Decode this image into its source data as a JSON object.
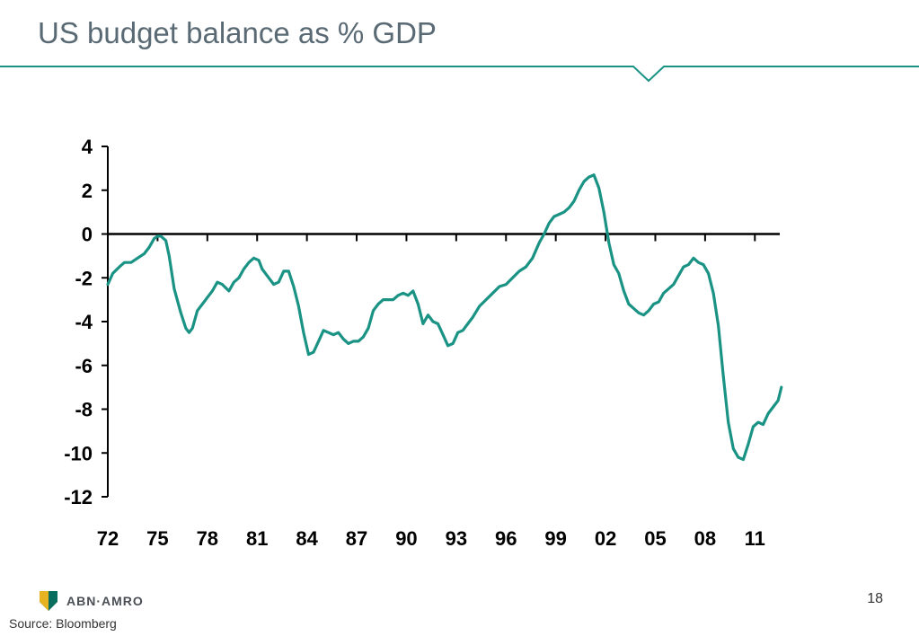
{
  "title": "US budget balance as % GDP",
  "source": "Source: Bloomberg",
  "page_number": "18",
  "logo_text": "ABN·AMRO",
  "colors": {
    "line": "#1a9385",
    "title": "#5a6a74",
    "rule": "#1a9385",
    "logo_dark": "#0a6e5f",
    "logo_yellow": "#e6b422"
  },
  "chart_data": {
    "type": "line",
    "x_tick_labels": [
      "72",
      "75",
      "78",
      "81",
      "84",
      "87",
      "90",
      "93",
      "96",
      "99",
      "02",
      "05",
      "08",
      "11"
    ],
    "x_tick_years": [
      1972,
      1975,
      1978,
      1981,
      1984,
      1987,
      1990,
      1993,
      1996,
      1999,
      2002,
      2005,
      2008,
      2011
    ],
    "xlim": [
      1972,
      2012.5
    ],
    "y_ticks": [
      4,
      2,
      0,
      -2,
      -4,
      -6,
      -8,
      -10,
      -12
    ],
    "ylim": [
      -12,
      4
    ],
    "grid": false,
    "series": [
      {
        "values": [
          [
            1972.0,
            -2.3
          ],
          [
            1972.3,
            -1.8
          ],
          [
            1972.7,
            -1.5
          ],
          [
            1973.0,
            -1.3
          ],
          [
            1973.4,
            -1.3
          ],
          [
            1973.8,
            -1.1
          ],
          [
            1974.2,
            -0.9
          ],
          [
            1974.5,
            -0.6
          ],
          [
            1974.8,
            -0.2
          ],
          [
            1975.0,
            -0.1
          ],
          [
            1975.2,
            -0.1
          ],
          [
            1975.5,
            -0.3
          ],
          [
            1975.7,
            -1.0
          ],
          [
            1976.0,
            -2.5
          ],
          [
            1976.4,
            -3.6
          ],
          [
            1976.7,
            -4.3
          ],
          [
            1976.9,
            -4.5
          ],
          [
            1977.1,
            -4.3
          ],
          [
            1977.4,
            -3.5
          ],
          [
            1977.8,
            -3.1
          ],
          [
            1978.0,
            -2.9
          ],
          [
            1978.3,
            -2.6
          ],
          [
            1978.6,
            -2.2
          ],
          [
            1978.9,
            -2.3
          ],
          [
            1979.3,
            -2.6
          ],
          [
            1979.6,
            -2.2
          ],
          [
            1979.9,
            -2.0
          ],
          [
            1980.2,
            -1.6
          ],
          [
            1980.5,
            -1.3
          ],
          [
            1980.8,
            -1.1
          ],
          [
            1981.1,
            -1.2
          ],
          [
            1981.3,
            -1.6
          ],
          [
            1981.6,
            -1.9
          ],
          [
            1982.0,
            -2.3
          ],
          [
            1982.3,
            -2.2
          ],
          [
            1982.6,
            -1.7
          ],
          [
            1982.9,
            -1.7
          ],
          [
            1983.2,
            -2.4
          ],
          [
            1983.5,
            -3.3
          ],
          [
            1983.8,
            -4.5
          ],
          [
            1984.1,
            -5.5
          ],
          [
            1984.4,
            -5.4
          ],
          [
            1984.7,
            -4.9
          ],
          [
            1985.0,
            -4.4
          ],
          [
            1985.3,
            -4.5
          ],
          [
            1985.6,
            -4.6
          ],
          [
            1985.9,
            -4.5
          ],
          [
            1986.2,
            -4.8
          ],
          [
            1986.5,
            -5.0
          ],
          [
            1986.8,
            -4.9
          ],
          [
            1987.1,
            -4.9
          ],
          [
            1987.4,
            -4.7
          ],
          [
            1987.7,
            -4.3
          ],
          [
            1988.0,
            -3.5
          ],
          [
            1988.3,
            -3.2
          ],
          [
            1988.6,
            -3.0
          ],
          [
            1988.9,
            -3.0
          ],
          [
            1989.2,
            -3.0
          ],
          [
            1989.5,
            -2.8
          ],
          [
            1989.8,
            -2.7
          ],
          [
            1990.1,
            -2.8
          ],
          [
            1990.4,
            -2.6
          ],
          [
            1990.7,
            -3.2
          ],
          [
            1991.0,
            -4.1
          ],
          [
            1991.3,
            -3.7
          ],
          [
            1991.6,
            -4.0
          ],
          [
            1991.9,
            -4.1
          ],
          [
            1992.2,
            -4.6
          ],
          [
            1992.5,
            -5.1
          ],
          [
            1992.8,
            -5.0
          ],
          [
            1993.1,
            -4.5
          ],
          [
            1993.4,
            -4.4
          ],
          [
            1993.7,
            -4.1
          ],
          [
            1994.0,
            -3.8
          ],
          [
            1994.4,
            -3.3
          ],
          [
            1994.8,
            -3.0
          ],
          [
            1995.2,
            -2.7
          ],
          [
            1995.6,
            -2.4
          ],
          [
            1996.0,
            -2.3
          ],
          [
            1996.4,
            -2.0
          ],
          [
            1996.8,
            -1.7
          ],
          [
            1997.2,
            -1.5
          ],
          [
            1997.6,
            -1.1
          ],
          [
            1998.0,
            -0.4
          ],
          [
            1998.3,
            0.0
          ],
          [
            1998.6,
            0.5
          ],
          [
            1998.9,
            0.8
          ],
          [
            1999.2,
            0.9
          ],
          [
            1999.5,
            1.0
          ],
          [
            1999.8,
            1.2
          ],
          [
            2000.1,
            1.5
          ],
          [
            2000.4,
            2.0
          ],
          [
            2000.7,
            2.4
          ],
          [
            2001.0,
            2.6
          ],
          [
            2001.3,
            2.7
          ],
          [
            2001.6,
            2.1
          ],
          [
            2001.9,
            1.0
          ],
          [
            2002.2,
            -0.4
          ],
          [
            2002.5,
            -1.4
          ],
          [
            2002.8,
            -1.8
          ],
          [
            2003.1,
            -2.6
          ],
          [
            2003.4,
            -3.2
          ],
          [
            2003.7,
            -3.4
          ],
          [
            2004.0,
            -3.6
          ],
          [
            2004.3,
            -3.7
          ],
          [
            2004.6,
            -3.5
          ],
          [
            2004.9,
            -3.2
          ],
          [
            2005.2,
            -3.1
          ],
          [
            2005.5,
            -2.7
          ],
          [
            2005.8,
            -2.5
          ],
          [
            2006.1,
            -2.3
          ],
          [
            2006.4,
            -1.9
          ],
          [
            2006.7,
            -1.5
          ],
          [
            2007.0,
            -1.4
          ],
          [
            2007.3,
            -1.1
          ],
          [
            2007.6,
            -1.3
          ],
          [
            2007.9,
            -1.4
          ],
          [
            2008.2,
            -1.8
          ],
          [
            2008.5,
            -2.7
          ],
          [
            2008.8,
            -4.2
          ],
          [
            2009.1,
            -6.5
          ],
          [
            2009.4,
            -8.6
          ],
          [
            2009.7,
            -9.8
          ],
          [
            2010.0,
            -10.2
          ],
          [
            2010.3,
            -10.3
          ],
          [
            2010.6,
            -9.6
          ],
          [
            2010.9,
            -8.8
          ],
          [
            2011.2,
            -8.6
          ],
          [
            2011.5,
            -8.7
          ],
          [
            2011.8,
            -8.2
          ],
          [
            2012.1,
            -7.9
          ],
          [
            2012.4,
            -7.6
          ],
          [
            2012.6,
            -7.0
          ]
        ]
      }
    ]
  }
}
